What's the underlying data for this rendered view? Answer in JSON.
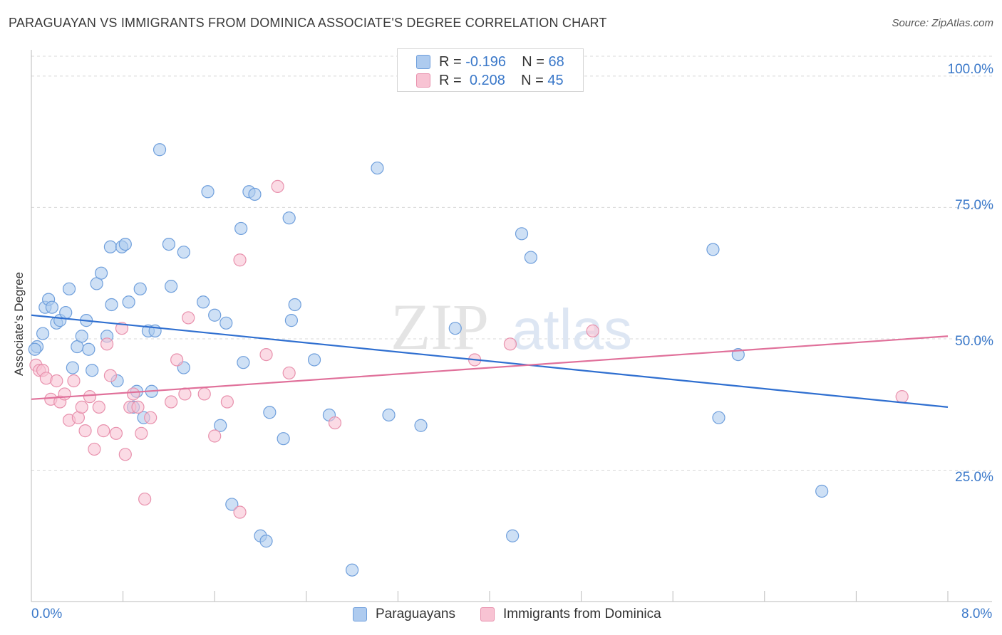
{
  "title": "PARAGUAYAN VS IMMIGRANTS FROM DOMINICA ASSOCIATE'S DEGREE CORRELATION CHART",
  "source": "Source: ZipAtlas.com",
  "colors": {
    "blue_fill": "#aecbef",
    "blue_stroke": "#6f9fdc",
    "blue_line": "#2f6fd0",
    "pink_fill": "#f8c3d3",
    "pink_stroke": "#e891ad",
    "pink_line": "#e0709a",
    "axis_text": "#3a78c9",
    "grid": "#d8d8d8"
  },
  "legend_top": {
    "rows": [
      {
        "r_label": "R =",
        "r_value": "-0.196",
        "n_label": "N =",
        "n_value": "68"
      },
      {
        "r_label": "R =",
        "r_value": "0.208",
        "n_label": "N =",
        "n_value": "45"
      }
    ]
  },
  "legend_bottom": {
    "items": [
      "Paraguayans",
      "Immigrants from Dominica"
    ]
  },
  "chart_data": {
    "type": "scatter",
    "title": "PARAGUAYAN VS IMMIGRANTS FROM DOMINICA ASSOCIATE'S DEGREE CORRELATION CHART",
    "xlabel": "",
    "ylabel": "Associate's Degree",
    "xlim": [
      0,
      8
    ],
    "ylim": [
      0,
      105
    ],
    "x_tick_labels": [
      "0.0%",
      "8.0%"
    ],
    "y_ticks": [
      25,
      50,
      75,
      100
    ],
    "y_tick_labels": [
      "25.0%",
      "50.0%",
      "75.0%",
      "100.0%"
    ],
    "watermark": "ZIPatlas",
    "series": [
      {
        "name": "Paraguayans",
        "r": -0.196,
        "n": 68,
        "trend": {
          "x": [
            0,
            8
          ],
          "y": [
            54.5,
            37.0
          ]
        },
        "points": [
          [
            0.05,
            48.5
          ],
          [
            0.1,
            51.0
          ],
          [
            0.12,
            56.0
          ],
          [
            0.15,
            57.5
          ],
          [
            0.18,
            56.0
          ],
          [
            0.22,
            53.0
          ],
          [
            0.25,
            53.5
          ],
          [
            0.3,
            55.0
          ],
          [
            0.33,
            59.5
          ],
          [
            0.36,
            44.5
          ],
          [
            0.4,
            48.5
          ],
          [
            0.44,
            50.5
          ],
          [
            0.48,
            53.5
          ],
          [
            0.5,
            48.0
          ],
          [
            0.53,
            44.0
          ],
          [
            0.57,
            60.5
          ],
          [
            0.61,
            62.5
          ],
          [
            0.66,
            50.5
          ],
          [
            0.69,
            67.5
          ],
          [
            0.7,
            56.5
          ],
          [
            0.75,
            42.0
          ],
          [
            0.79,
            67.5
          ],
          [
            0.82,
            68.0
          ],
          [
            0.85,
            57.0
          ],
          [
            0.89,
            37.0
          ],
          [
            0.92,
            40.0
          ],
          [
            0.95,
            59.5
          ],
          [
            0.98,
            35.0
          ],
          [
            1.02,
            51.5
          ],
          [
            1.05,
            40.0
          ],
          [
            1.08,
            51.5
          ],
          [
            1.12,
            86.0
          ],
          [
            1.2,
            68.0
          ],
          [
            1.22,
            60.0
          ],
          [
            1.33,
            66.5
          ],
          [
            1.33,
            44.5
          ],
          [
            1.5,
            57.0
          ],
          [
            1.54,
            78.0
          ],
          [
            1.6,
            54.5
          ],
          [
            1.65,
            33.5
          ],
          [
            1.7,
            53.0
          ],
          [
            1.75,
            18.5
          ],
          [
            1.83,
            71.0
          ],
          [
            1.85,
            45.5
          ],
          [
            1.9,
            78.0
          ],
          [
            1.95,
            77.5
          ],
          [
            2.0,
            12.5
          ],
          [
            2.05,
            11.5
          ],
          [
            2.08,
            36.0
          ],
          [
            2.2,
            31.0
          ],
          [
            2.25,
            73.0
          ],
          [
            2.27,
            53.5
          ],
          [
            2.3,
            56.5
          ],
          [
            2.47,
            46.0
          ],
          [
            2.6,
            35.5
          ],
          [
            2.8,
            6.0
          ],
          [
            3.02,
            82.5
          ],
          [
            3.12,
            35.5
          ],
          [
            3.4,
            33.5
          ],
          [
            3.7,
            52.0
          ],
          [
            4.2,
            12.5
          ],
          [
            4.28,
            70.0
          ],
          [
            4.36,
            65.5
          ],
          [
            5.95,
            67.0
          ],
          [
            6.17,
            47.0
          ],
          [
            6.0,
            35.0
          ],
          [
            6.9,
            21.0
          ],
          [
            0.03,
            48.0
          ]
        ]
      },
      {
        "name": "Immigrants from Dominica",
        "r": 0.208,
        "n": 45,
        "trend": {
          "x": [
            0,
            8
          ],
          "y": [
            38.5,
            50.5
          ]
        },
        "points": [
          [
            0.04,
            45.0
          ],
          [
            0.07,
            44.0
          ],
          [
            0.1,
            44.0
          ],
          [
            0.13,
            42.5
          ],
          [
            0.17,
            38.5
          ],
          [
            0.22,
            42.0
          ],
          [
            0.25,
            38.0
          ],
          [
            0.29,
            39.5
          ],
          [
            0.33,
            34.5
          ],
          [
            0.37,
            42.0
          ],
          [
            0.41,
            35.0
          ],
          [
            0.44,
            37.0
          ],
          [
            0.47,
            32.5
          ],
          [
            0.51,
            39.0
          ],
          [
            0.55,
            29.0
          ],
          [
            0.59,
            37.0
          ],
          [
            0.63,
            32.5
          ],
          [
            0.66,
            49.0
          ],
          [
            0.69,
            43.0
          ],
          [
            0.74,
            32.0
          ],
          [
            0.79,
            52.0
          ],
          [
            0.82,
            28.0
          ],
          [
            0.86,
            37.0
          ],
          [
            0.89,
            39.5
          ],
          [
            0.93,
            37.0
          ],
          [
            0.96,
            32.0
          ],
          [
            0.99,
            19.5
          ],
          [
            1.04,
            35.0
          ],
          [
            1.22,
            38.0
          ],
          [
            1.27,
            46.0
          ],
          [
            1.34,
            39.5
          ],
          [
            1.37,
            54.0
          ],
          [
            1.51,
            39.5
          ],
          [
            1.6,
            31.5
          ],
          [
            1.71,
            38.0
          ],
          [
            1.82,
            65.0
          ],
          [
            1.82,
            17.0
          ],
          [
            2.05,
            47.0
          ],
          [
            2.15,
            79.0
          ],
          [
            2.25,
            43.5
          ],
          [
            2.65,
            34.0
          ],
          [
            3.87,
            46.0
          ],
          [
            4.18,
            49.0
          ],
          [
            4.9,
            51.5
          ],
          [
            7.6,
            39.0
          ]
        ]
      }
    ]
  }
}
